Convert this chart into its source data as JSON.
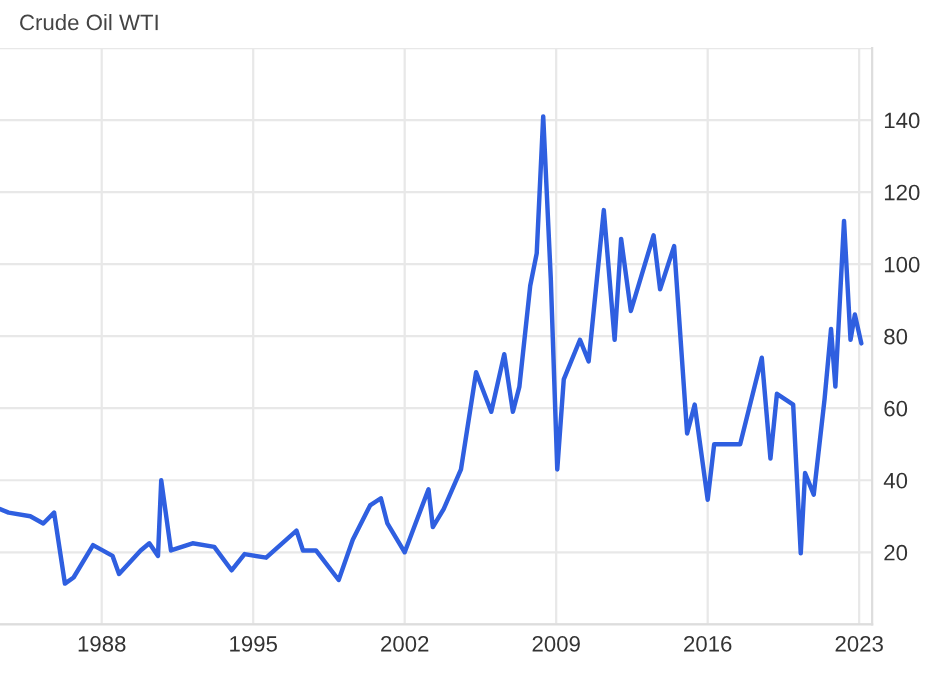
{
  "chart_data": {
    "type": "line",
    "title": "Crude Oil WTI",
    "x": [
      1983.3,
      1983.7,
      1984.7,
      1985.3,
      1985.8,
      1986.3,
      1986.7,
      1987.6,
      1988.5,
      1988.8,
      1989.8,
      1990.2,
      1990.6,
      1990.75,
      1991.2,
      1992.2,
      1993.2,
      1994.0,
      1994.6,
      1995.6,
      1997.0,
      1997.3,
      1997.9,
      1998.95,
      1999.6,
      2000.4,
      2000.9,
      2001.2,
      2002.0,
      2002.5,
      2003.1,
      2003.3,
      2003.8,
      2004.6,
      2005.3,
      2006.0,
      2006.6,
      2007.0,
      2007.3,
      2007.8,
      2008.1,
      2008.4,
      2008.75,
      2009.05,
      2009.35,
      2010.1,
      2010.5,
      2011.2,
      2011.7,
      2012.0,
      2012.45,
      2013.5,
      2013.8,
      2014.45,
      2015.05,
      2015.4,
      2016.0,
      2016.3,
      2017.5,
      2018.5,
      2018.9,
      2019.2,
      2019.95,
      2020.3,
      2020.5,
      2020.9,
      2021.4,
      2021.7,
      2021.9,
      2022.3,
      2022.6,
      2022.8,
      2023.1
    ],
    "series": [
      {
        "color": "#2f5fe0",
        "values": [
          32,
          31,
          30,
          28,
          31,
          11.3,
          13,
          22,
          19,
          14,
          20.5,
          22.5,
          19,
          40,
          20.5,
          22.5,
          21.5,
          15,
          19.5,
          18.5,
          26,
          20.5,
          20.5,
          12.3,
          23.5,
          33,
          35,
          28,
          20,
          28,
          37.5,
          27,
          32,
          43,
          70,
          59,
          75,
          59,
          66,
          94,
          103,
          141,
          96,
          43,
          68,
          79,
          73,
          115,
          79,
          107,
          87,
          108,
          93,
          105,
          53,
          61,
          34.6,
          50,
          50,
          74,
          46,
          64,
          61,
          19.7,
          42,
          36,
          62.5,
          82,
          66,
          112,
          79,
          86,
          78
        ]
      }
    ],
    "xlim": [
      1983.3,
      2023.6
    ],
    "xticks": [
      1988,
      1995,
      2002,
      2009,
      2016,
      2023
    ],
    "ylim": [
      0,
      160
    ],
    "yticks": [
      {
        "value": 0,
        "label": null
      },
      20,
      40,
      60,
      80,
      100,
      120,
      140,
      {
        "value": 160,
        "label": null
      }
    ],
    "grid": true,
    "marker": "none",
    "line_style": "solid"
  }
}
